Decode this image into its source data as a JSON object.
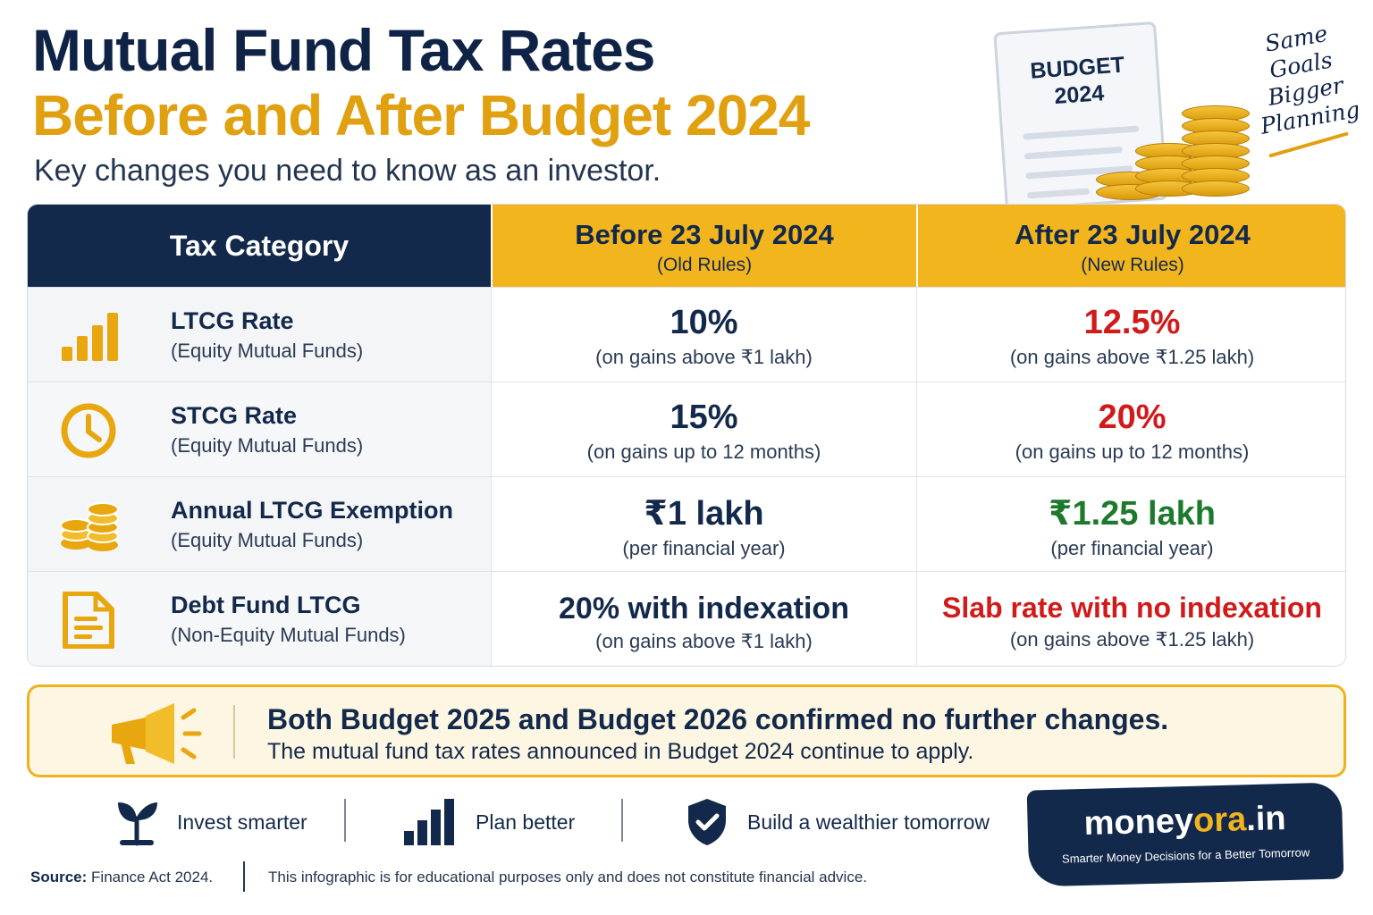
{
  "header": {
    "title_line1": "Mutual Fund Tax Rates",
    "title_line2": "Before and After Budget 2024",
    "subtitle": "Key changes you need to know as an investor."
  },
  "hero": {
    "doc_line1": "BUDGET",
    "doc_line2": "2024",
    "handwritten": [
      "Same",
      "Goals",
      "Bigger",
      "Planning"
    ]
  },
  "table": {
    "headers": {
      "category": "Tax Category",
      "before_main": "Before 23 July 2024",
      "before_sub": "(Old Rules)",
      "after_main": "After 23 July 2024",
      "after_sub": "(New Rules)"
    },
    "rows": [
      {
        "icon": "bar-chart-icon",
        "name": "LTCG Rate",
        "sub": "(Equity Mutual Funds)",
        "before_value": "10%",
        "before_note": "(on gains above ₹1 lakh)",
        "after_value": "12.5%",
        "after_note": "(on gains above ₹1.25 lakh)",
        "after_color": "#d11a1a"
      },
      {
        "icon": "clock-icon",
        "name": "STCG Rate",
        "sub": "(Equity Mutual Funds)",
        "before_value": "15%",
        "before_note": "(on gains up to 12 months)",
        "after_value": "20%",
        "after_note": "(on gains up to 12 months)",
        "after_color": "#d11a1a"
      },
      {
        "icon": "coins-icon",
        "name": "Annual LTCG Exemption",
        "sub": "(Equity Mutual Funds)",
        "before_value": "₹1 lakh",
        "before_note": "(per financial year)",
        "after_value": "₹1.25 lakh",
        "after_note": "(per financial year)",
        "after_color": "#1d7a2c"
      },
      {
        "icon": "document-icon",
        "name": "Debt Fund LTCG",
        "sub": "(Non-Equity Mutual Funds)",
        "before_value": "20% with indexation",
        "before_note": "(on gains above ₹1 lakh)",
        "after_value": "Slab rate with no indexation",
        "after_note": "(on gains above ₹1.25 lakh)",
        "after_color": "#d11a1a"
      }
    ]
  },
  "banner": {
    "icon": "megaphone-icon",
    "title": "Both Budget 2025 and Budget 2026 confirmed no further changes.",
    "text": "The mutual fund tax rates announced in Budget 2024 continue to apply."
  },
  "taglines": [
    {
      "icon": "sprout-icon",
      "label": "Invest smarter"
    },
    {
      "icon": "bar-chart-icon",
      "label": "Plan better"
    },
    {
      "icon": "shield-check-icon",
      "label": "Build a wealthier tomorrow"
    }
  ],
  "brand": {
    "name_part1": "money",
    "name_part2": "ora",
    "name_part3": ".in",
    "tagline": "Smarter Money Decisions for a Better Tomorrow",
    "accent": "#f3b51d"
  },
  "footer": {
    "source_label": "Source:",
    "source_value": "Finance Act 2024.",
    "disclaimer": "This infographic is for educational purposes only and does not constitute financial advice."
  },
  "colors": {
    "navy": "#13294b",
    "gold": "#f3b51d",
    "red": "#d11a1a",
    "green": "#1d7a2c"
  }
}
